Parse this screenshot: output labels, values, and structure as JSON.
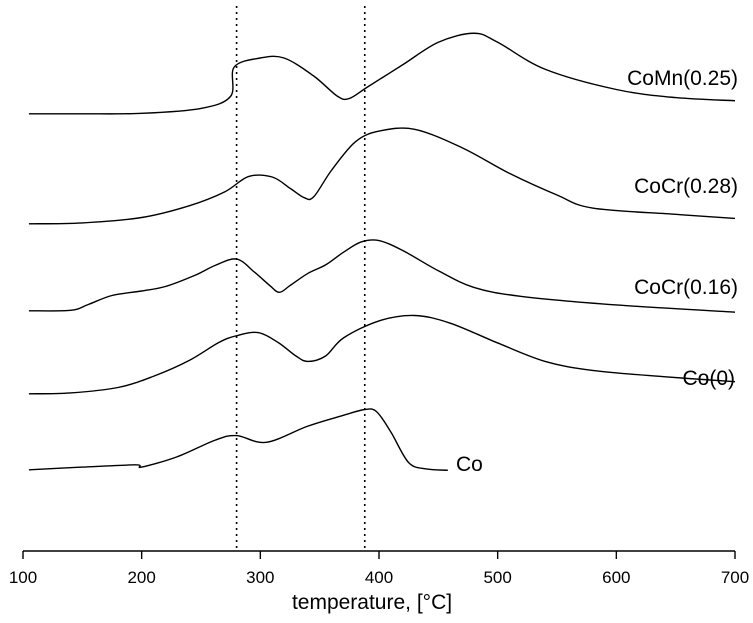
{
  "chart_data": {
    "type": "line",
    "xlabel": "temperature, [°C]",
    "xlim": [
      100,
      700
    ],
    "xticks": [
      100,
      200,
      300,
      400,
      500,
      600,
      700
    ],
    "reference_lines_x": [
      280,
      388
    ],
    "series": [
      {
        "name": "CoMn(0.25)",
        "points": [
          [
            105,
            0.16
          ],
          [
            150,
            0.16
          ],
          [
            200,
            0.17
          ],
          [
            250,
            0.28
          ],
          [
            275,
            0.55
          ],
          [
            278,
            1.2
          ],
          [
            300,
            1.4
          ],
          [
            320,
            1.4
          ],
          [
            345,
            1.0
          ],
          [
            365,
            0.55
          ],
          [
            375,
            0.5
          ],
          [
            390,
            0.75
          ],
          [
            420,
            1.25
          ],
          [
            450,
            1.75
          ],
          [
            480,
            1.95
          ],
          [
            500,
            1.75
          ],
          [
            540,
            1.15
          ],
          [
            600,
            0.7
          ],
          [
            650,
            0.52
          ],
          [
            700,
            0.45
          ]
        ]
      },
      {
        "name": "CoCr(0.28)",
        "points": [
          [
            105,
            0.16
          ],
          [
            150,
            0.18
          ],
          [
            200,
            0.3
          ],
          [
            240,
            0.56
          ],
          [
            270,
            0.87
          ],
          [
            290,
            1.21
          ],
          [
            310,
            1.2
          ],
          [
            325,
            0.95
          ],
          [
            337,
            0.74
          ],
          [
            345,
            0.76
          ],
          [
            360,
            1.35
          ],
          [
            380,
            1.98
          ],
          [
            400,
            2.22
          ],
          [
            430,
            2.26
          ],
          [
            470,
            1.85
          ],
          [
            510,
            1.28
          ],
          [
            550,
            0.8
          ],
          [
            580,
            0.51
          ],
          [
            650,
            0.37
          ],
          [
            700,
            0.28
          ]
        ]
      },
      {
        "name": "CoCr(0.16)",
        "points": [
          [
            105,
            0.16
          ],
          [
            140,
            0.17
          ],
          [
            155,
            0.3
          ],
          [
            175,
            0.5
          ],
          [
            200,
            0.6
          ],
          [
            220,
            0.7
          ],
          [
            245,
            0.95
          ],
          [
            262,
            1.17
          ],
          [
            280,
            1.31
          ],
          [
            295,
            1.02
          ],
          [
            308,
            0.72
          ],
          [
            316,
            0.57
          ],
          [
            325,
            0.72
          ],
          [
            340,
            0.99
          ],
          [
            355,
            1.18
          ],
          [
            370,
            1.46
          ],
          [
            385,
            1.69
          ],
          [
            400,
            1.72
          ],
          [
            420,
            1.5
          ],
          [
            450,
            1.05
          ],
          [
            480,
            0.68
          ],
          [
            520,
            0.48
          ],
          [
            600,
            0.29
          ],
          [
            700,
            0.13
          ]
        ]
      },
      {
        "name": "Co(0)",
        "points": [
          [
            105,
            0.16
          ],
          [
            140,
            0.18
          ],
          [
            180,
            0.3
          ],
          [
            210,
            0.55
          ],
          [
            240,
            0.9
          ],
          [
            265,
            1.3
          ],
          [
            280,
            1.45
          ],
          [
            298,
            1.52
          ],
          [
            315,
            1.3
          ],
          [
            330,
            1.0
          ],
          [
            340,
            0.88
          ],
          [
            355,
            1.0
          ],
          [
            370,
            1.4
          ],
          [
            400,
            1.78
          ],
          [
            430,
            1.9
          ],
          [
            460,
            1.73
          ],
          [
            500,
            1.29
          ],
          [
            540,
            0.88
          ],
          [
            580,
            0.68
          ],
          [
            640,
            0.54
          ],
          [
            700,
            0.43
          ]
        ]
      },
      {
        "name": "Co",
        "points": [
          [
            105,
            0.16
          ],
          [
            150,
            0.22
          ],
          [
            195,
            0.27
          ],
          [
            200,
            0.22
          ],
          [
            230,
            0.45
          ],
          [
            262,
            0.82
          ],
          [
            280,
            0.92
          ],
          [
            305,
            0.77
          ],
          [
            340,
            1.13
          ],
          [
            370,
            1.37
          ],
          [
            388,
            1.5
          ],
          [
            398,
            1.45
          ],
          [
            410,
            1.0
          ],
          [
            425,
            0.32
          ],
          [
            440,
            0.18
          ],
          [
            458,
            0.15
          ]
        ]
      }
    ]
  }
}
